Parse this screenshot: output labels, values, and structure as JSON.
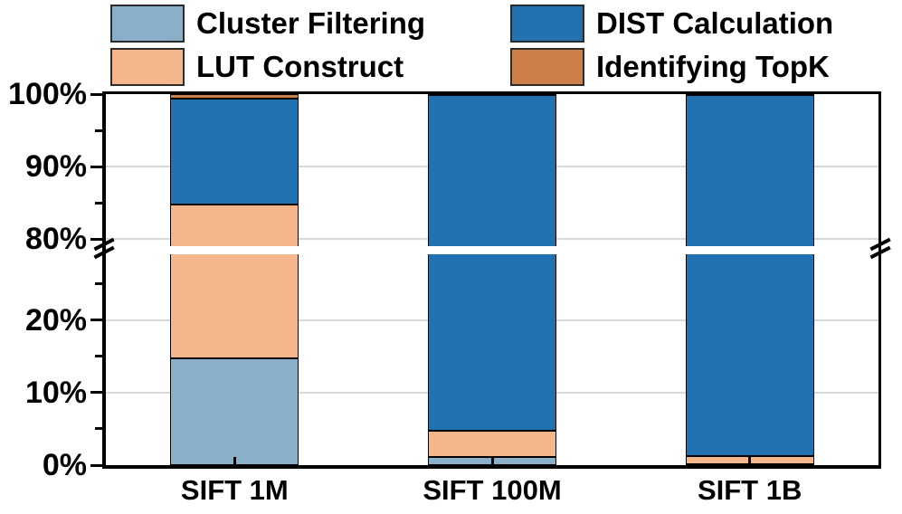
{
  "colors": {
    "cluster_filtering": "#8AAFC8",
    "lut_construct": "#F6B68C",
    "dist_calculation": "#2272B2",
    "identifying_topk": "#CD7F4A",
    "bar_border": "#000000",
    "gridline": "#D8D8D8",
    "axis": "#000000",
    "background": "#FFFFFF"
  },
  "legend": {
    "items": [
      {
        "label": "Cluster Filtering",
        "color_key": "cluster_filtering",
        "col": 0,
        "row": 0
      },
      {
        "label": "DIST Calculation",
        "color_key": "dist_calculation",
        "col": 1,
        "row": 0
      },
      {
        "label": "LUT Construct",
        "color_key": "lut_construct",
        "col": 0,
        "row": 1
      },
      {
        "label": "Identifying TopK",
        "color_key": "identifying_topk",
        "col": 1,
        "row": 1
      }
    ]
  },
  "chart_data": {
    "type": "bar",
    "stacked": true,
    "unit": "percent",
    "title": "",
    "xlabel": "",
    "ylabel": "",
    "grid": "horizontal-major",
    "legend_position": "top",
    "categories": [
      "SIFT 1M",
      "SIFT 100M",
      "SIFT 1B"
    ],
    "series": [
      {
        "name": "Cluster Filtering",
        "color": "#8AAFC8",
        "values": [
          14.7,
          1.1,
          0.1
        ]
      },
      {
        "name": "LUT Construct",
        "color": "#F6B68C",
        "values": [
          70.1,
          3.6,
          1.2
        ]
      },
      {
        "name": "DIST Calculation",
        "color": "#2272B2",
        "values": [
          14.6,
          95.2,
          98.6
        ]
      },
      {
        "name": "Identifying TopK",
        "color": "#CD7F4A",
        "values": [
          0.6,
          0.1,
          0.1
        ]
      }
    ],
    "y_axis": {
      "broken": true,
      "lower_range": [
        0,
        29
      ],
      "upper_range": [
        79,
        100
      ],
      "major_ticks": [
        {
          "v": 0,
          "label": "0%"
        },
        {
          "v": 10,
          "label": "10%"
        },
        {
          "v": 20,
          "label": "20%"
        },
        {
          "v": 80,
          "label": "80%"
        },
        {
          "v": 90,
          "label": "90%"
        },
        {
          "v": 100,
          "label": "100%"
        }
      ],
      "minor_ticks": [
        5,
        15,
        25,
        85,
        95
      ]
    }
  }
}
